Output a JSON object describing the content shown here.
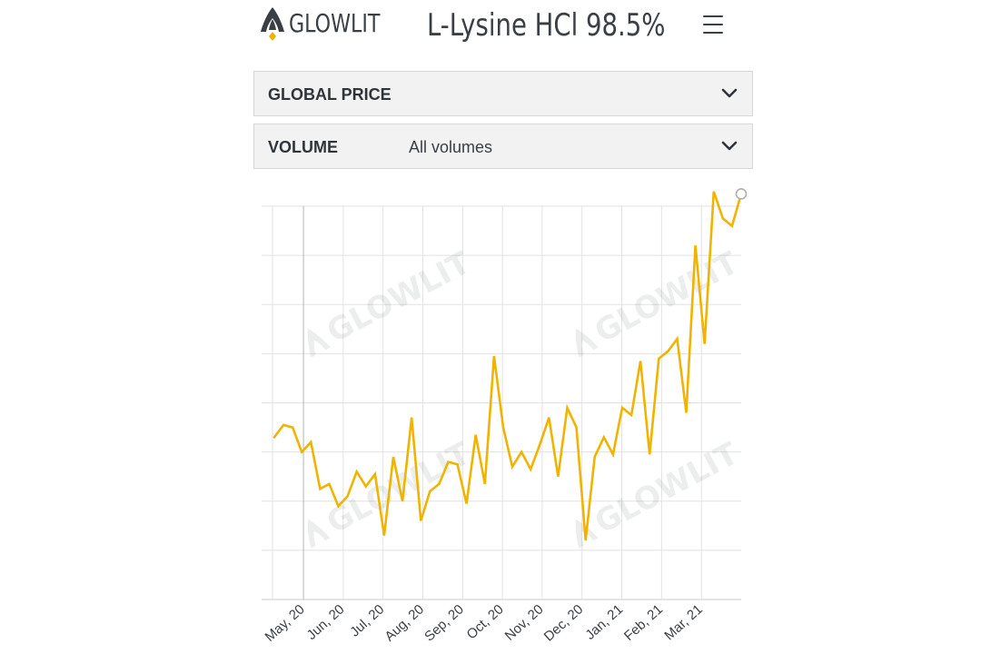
{
  "header": {
    "brand": "GLOWLIT",
    "title": "L-Lysine HCl 98.5%",
    "menu_icon": "hamburger-menu-icon"
  },
  "filters": [
    {
      "label": "GLOBAL PRICE",
      "value": "",
      "icon": "chevron-down-icon"
    },
    {
      "label": "VOLUME",
      "value": "All volumes",
      "icon": "chevron-down-icon"
    }
  ],
  "colors": {
    "line": "#f0b400",
    "logo_accent": "#f0b400",
    "text": "#3a3f45",
    "grid": "#e2e2e2"
  },
  "chart_data": {
    "type": "line",
    "title": "",
    "xlabel": "",
    "ylabel": "",
    "watermark": "GLOWLIT",
    "grid": true,
    "y_tick_labels_shown": false,
    "ylim": [
      0,
      8
    ],
    "x_tick_labels": [
      "May, 20",
      "Jun, 20",
      "Jul, 20",
      "Aug, 20",
      "Sep, 20",
      "Oct, 20",
      "Nov, 20",
      "Dec, 20",
      "Jan, 21",
      "Feb, 21",
      "Mar, 21"
    ],
    "x_ticks_at": [
      3.5,
      8,
      12.5,
      17,
      21.5,
      26,
      30.5,
      35,
      39.5,
      44,
      48.5
    ],
    "xlim": [
      0,
      53
    ],
    "series": [
      {
        "values": [
          3.3,
          3.55,
          3.5,
          3.0,
          3.2,
          2.25,
          2.35,
          1.9,
          2.1,
          2.6,
          2.3,
          2.55,
          1.3,
          2.9,
          2.0,
          3.7,
          1.6,
          2.2,
          2.35,
          2.8,
          2.75,
          1.95,
          3.35,
          2.35,
          4.95,
          3.5,
          2.7,
          3.0,
          2.65,
          3.15,
          3.7,
          2.5,
          3.9,
          3.5,
          1.2,
          2.9,
          3.3,
          2.95,
          3.9,
          3.75,
          4.85,
          2.95,
          4.9,
          5.05,
          5.3,
          3.8,
          7.2,
          5.2,
          8.3,
          7.75,
          7.6,
          8.25
        ]
      }
    ]
  }
}
